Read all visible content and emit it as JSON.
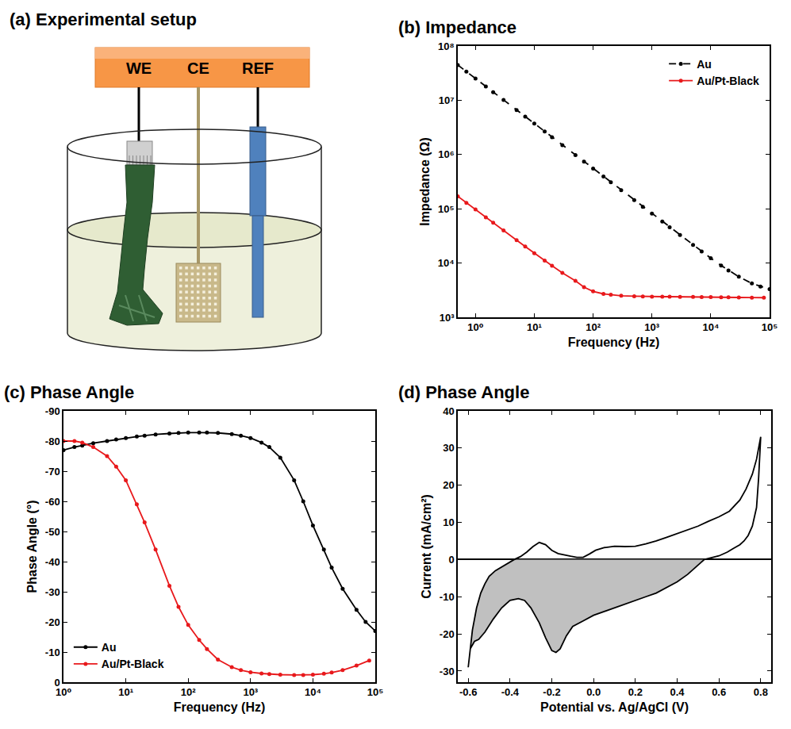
{
  "setup": {
    "title": "(a) Experimental setup",
    "labels": [
      "WE",
      "CE",
      "REF"
    ]
  },
  "chart_data": [
    {
      "type": "line",
      "title": "(b) Impedance",
      "x_label": "Frequency (Hz)",
      "y_label": "Impedance (Ω)",
      "log": true,
      "grid": false,
      "legend": "top-right",
      "xlim": [
        0.5,
        100000
      ],
      "xticks": [
        {
          "value": 1,
          "label": "10⁰"
        },
        {
          "value": 10,
          "label": "10¹"
        },
        {
          "value": 100,
          "label": "10²"
        },
        {
          "value": 1000,
          "label": "10³"
        },
        {
          "value": 10000,
          "label": "10⁴"
        },
        {
          "value": 100000,
          "label": "10⁵"
        }
      ],
      "ylim": [
        1000,
        100000000
      ],
      "yticks": [
        {
          "value": 1000,
          "label": "10³"
        },
        {
          "value": 10000,
          "label": "10⁴"
        },
        {
          "value": 100000,
          "label": "10⁵"
        },
        {
          "value": 1000000,
          "label": "10⁶"
        },
        {
          "value": 10000000,
          "label": "10⁷"
        },
        {
          "value": 100000000,
          "label": "10⁸"
        }
      ],
      "series": [
        {
          "name": "Au",
          "color": "#000000",
          "line_style": "dash",
          "marker": "circle",
          "x": [
            0.5,
            0.7,
            1,
            1.5,
            2,
            3,
            5,
            7,
            10,
            15,
            20,
            30,
            50,
            70,
            100,
            150,
            200,
            300,
            500,
            700,
            1000,
            1500,
            2000,
            3000,
            5000,
            7000,
            10000,
            15000,
            20000,
            30000,
            50000,
            70000,
            100000
          ],
          "values": [
            44700000,
            33800000,
            25100000,
            17900000,
            14100000,
            10100000,
            6610000,
            5000000,
            3720000,
            2650000,
            2090000,
            1490000,
            977000,
            740000,
            550000,
            393000,
            309000,
            221000,
            145000,
            109000,
            81300,
            58200,
            45800,
            32800,
            21600,
            16400,
            12300,
            9000,
            7300,
            5600,
            4200,
            3700,
            3300
          ]
        },
        {
          "name": "Au/Pt-Black",
          "color": "#e8191c",
          "line_style": "solid",
          "marker": "circle",
          "x": [
            0.5,
            0.7,
            1,
            1.5,
            2,
            3,
            5,
            7,
            10,
            15,
            20,
            30,
            50,
            70,
            100,
            150,
            200,
            300,
            500,
            700,
            1000,
            1500,
            2000,
            3000,
            5000,
            7000,
            10000,
            15000,
            20000,
            30000,
            50000,
            80000
          ],
          "values": [
            170000,
            129000,
            97000,
            69700,
            55300,
            39900,
            26400,
            20200,
            15200,
            11100,
            8900,
            6600,
            4700,
            3600,
            3000,
            2700,
            2600,
            2500,
            2450,
            2420,
            2400,
            2400,
            2400,
            2380,
            2370,
            2360,
            2350,
            2340,
            2330,
            2320,
            2310,
            2300
          ]
        }
      ]
    },
    {
      "type": "line",
      "title": "(c) Phase Angle",
      "x_label": "Frequency (Hz)",
      "y_label": "Phase Angle (°)",
      "log": "x",
      "grid": false,
      "legend": "bottom-left",
      "xlim": [
        1,
        100000
      ],
      "xticks": [
        {
          "value": 1,
          "label": "10⁰"
        },
        {
          "value": 10,
          "label": "10¹"
        },
        {
          "value": 100,
          "label": "10²"
        },
        {
          "value": 1000,
          "label": "10³"
        },
        {
          "value": 10000,
          "label": "10⁴"
        },
        {
          "value": 100000,
          "label": "10⁵"
        }
      ],
      "ylim": [
        0,
        -90
      ],
      "yticks": [
        -90,
        -80,
        -70,
        -60,
        -50,
        -40,
        -30,
        -20,
        -10,
        0
      ],
      "series": [
        {
          "name": "Au",
          "color": "#000000",
          "line_style": "solid",
          "marker": "circle",
          "x": [
            1,
            1.5,
            2,
            3,
            5,
            7,
            10,
            15,
            20,
            30,
            50,
            70,
            100,
            150,
            200,
            300,
            500,
            700,
            1000,
            1500,
            2000,
            3000,
            5000,
            7000,
            10000,
            15000,
            20000,
            30000,
            50000,
            70000,
            100000
          ],
          "values": [
            -77,
            -78,
            -78.5,
            -79.3,
            -80,
            -80.5,
            -81,
            -81.5,
            -81.8,
            -82.2,
            -82.5,
            -82.7,
            -82.8,
            -82.8,
            -82.8,
            -82.7,
            -82.3,
            -81.8,
            -81,
            -79.5,
            -78,
            -74.5,
            -67,
            -60,
            -52,
            -44,
            -38,
            -31,
            -24,
            -20,
            -17
          ]
        },
        {
          "name": "Au/Pt-Black",
          "color": "#e8191c",
          "line_style": "solid",
          "marker": "circle",
          "x": [
            1,
            1.5,
            2,
            3,
            5,
            7,
            10,
            15,
            20,
            30,
            50,
            70,
            100,
            150,
            200,
            300,
            500,
            700,
            1000,
            1500,
            2000,
            3000,
            5000,
            7000,
            10000,
            15000,
            20000,
            30000,
            50000,
            80000
          ],
          "values": [
            -80,
            -80,
            -79.5,
            -78,
            -75,
            -71.5,
            -67,
            -59,
            -53,
            -44,
            -32,
            -25,
            -19,
            -14,
            -11,
            -7.5,
            -5,
            -4,
            -3.3,
            -2.9,
            -2.7,
            -2.5,
            -2.4,
            -2.4,
            -2.5,
            -2.8,
            -3.2,
            -4,
            -5.5,
            -7.2
          ]
        }
      ]
    },
    {
      "type": "line",
      "title": "(d) Phase Angle",
      "x_label": "Potential vs. Ag/AgCl (V)",
      "y_label": "Current (mA/cm²)",
      "grid": false,
      "color": "#c0c0c0",
      "xlim": [
        -0.65,
        0.85
      ],
      "xticks": [
        -0.6,
        -0.4,
        -0.2,
        {
          "value": 0,
          "label": "0.0"
        },
        0.2,
        0.4,
        0.6,
        0.8
      ],
      "ylim": [
        -33,
        40
      ],
      "yticks": [
        -30,
        -20,
        -10,
        0,
        10,
        20,
        30,
        40
      ],
      "series": [
        {
          "color": "#000000",
          "line_style": "solid",
          "x": [
            -0.6,
            -0.59,
            -0.58,
            -0.56,
            -0.54,
            -0.52,
            -0.5,
            -0.47,
            -0.44,
            -0.41,
            -0.38,
            -0.35,
            -0.32,
            -0.29,
            -0.26,
            -0.23,
            -0.2,
            -0.17,
            -0.14,
            -0.11,
            -0.08,
            -0.05,
            -0.02,
            0.01,
            0.05,
            0.1,
            0.15,
            0.2,
            0.25,
            0.3,
            0.35,
            0.4,
            0.45,
            0.5,
            0.55,
            0.6,
            0.65,
            0.7,
            0.73,
            0.76,
            0.78,
            0.8,
            0.79,
            0.78,
            0.76,
            0.74,
            0.72,
            0.7,
            0.67,
            0.64,
            0.6,
            0.57,
            0.53,
            0.5,
            0.45,
            0.4,
            0.35,
            0.3,
            0.25,
            0.2,
            0.15,
            0.1,
            0.05,
            0,
            -0.05,
            -0.1,
            -0.13,
            -0.16,
            -0.18,
            -0.2,
            -0.23,
            -0.26,
            -0.3,
            -0.33,
            -0.36,
            -0.4,
            -0.44,
            -0.48,
            -0.52,
            -0.55,
            -0.57,
            -0.59,
            -0.6
          ],
          "values": [
            -29,
            -24,
            -19,
            -13,
            -9,
            -6.5,
            -4.5,
            -3,
            -2,
            -1,
            0,
            0.8,
            2,
            3.5,
            4.6,
            4,
            2.5,
            1.6,
            1.2,
            0.9,
            0.6,
            0.6,
            1.5,
            2.5,
            3.2,
            3.6,
            3.5,
            3.6,
            4.2,
            5,
            6,
            7,
            8,
            9,
            10.3,
            11.5,
            13,
            16,
            19,
            23,
            27,
            33,
            22,
            14,
            9,
            6.5,
            5,
            4,
            3,
            2,
            1,
            0.5,
            0,
            -1.5,
            -4,
            -6,
            -7.5,
            -9,
            -10,
            -11,
            -12,
            -13,
            -14,
            -15,
            -16.5,
            -18,
            -20.5,
            -24,
            -25,
            -24.5,
            -21,
            -17,
            -13,
            -11,
            -10.5,
            -11,
            -13,
            -16,
            -19.5,
            -21.5,
            -22,
            -24,
            -29
          ]
        }
      ]
    }
  ]
}
